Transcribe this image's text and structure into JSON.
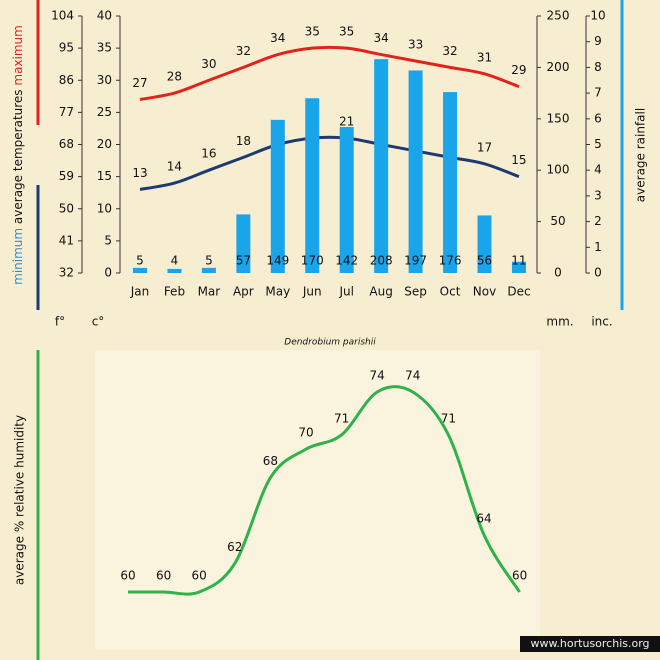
{
  "chart_data": [
    {
      "type": "climate",
      "categories": [
        "Jan",
        "Feb",
        "Mar",
        "Apr",
        "May",
        "Jun",
        "Jul",
        "Aug",
        "Sep",
        "Oct",
        "Nov",
        "Dec"
      ],
      "series": [
        {
          "name": "maximum",
          "color": "#e3231b",
          "type": "line",
          "values": [
            27,
            28,
            30,
            32,
            34,
            35,
            35,
            34,
            33,
            32,
            31,
            29
          ]
        },
        {
          "name": "minimum",
          "color": "#1f3a70",
          "type": "line",
          "values": [
            13,
            14,
            16,
            18,
            20,
            21,
            21,
            20,
            19,
            18,
            17,
            15
          ]
        },
        {
          "name": "average rainfall",
          "color": "#1aa4ea",
          "type": "bar",
          "axis": "y2",
          "values": [
            5,
            4,
            5,
            57,
            149,
            170,
            142,
            208,
            197,
            176,
            56,
            11
          ]
        }
      ],
      "ylabel_parts": [
        "minimum",
        "average temperatures",
        "maximum"
      ],
      "ylabel_colors": [
        "#2a8fd8",
        "#111111",
        "#e3231b"
      ],
      "y2label": "average rainfall",
      "ylim": [
        0,
        40
      ],
      "yticks": [
        0,
        5,
        10,
        15,
        20,
        25,
        30,
        35,
        40
      ],
      "yunit": "c°",
      "y3lim": [
        32,
        104
      ],
      "y3ticks": [
        32,
        41,
        50,
        59,
        68,
        77,
        86,
        95,
        104
      ],
      "y3unit": "f°",
      "y2lim": [
        0,
        250
      ],
      "y2ticks": [
        0,
        50,
        100,
        150,
        200,
        250
      ],
      "y2unit": "mm.",
      "y4lim": [
        0,
        10
      ],
      "y4ticks": [
        0,
        1,
        2,
        3,
        4,
        5,
        6,
        7,
        8,
        9,
        10
      ],
      "y4unit": "inc.",
      "title": "Dendrobium parishii"
    },
    {
      "type": "line",
      "ylabel": "average % relative humidity",
      "series": [
        {
          "name": "humidity",
          "color": "#2db34a",
          "values": [
            60,
            60,
            60,
            62,
            68,
            70,
            71,
            74,
            74,
            71,
            64,
            60
          ]
        }
      ],
      "watermark": "www.hortusorchis.org"
    }
  ]
}
